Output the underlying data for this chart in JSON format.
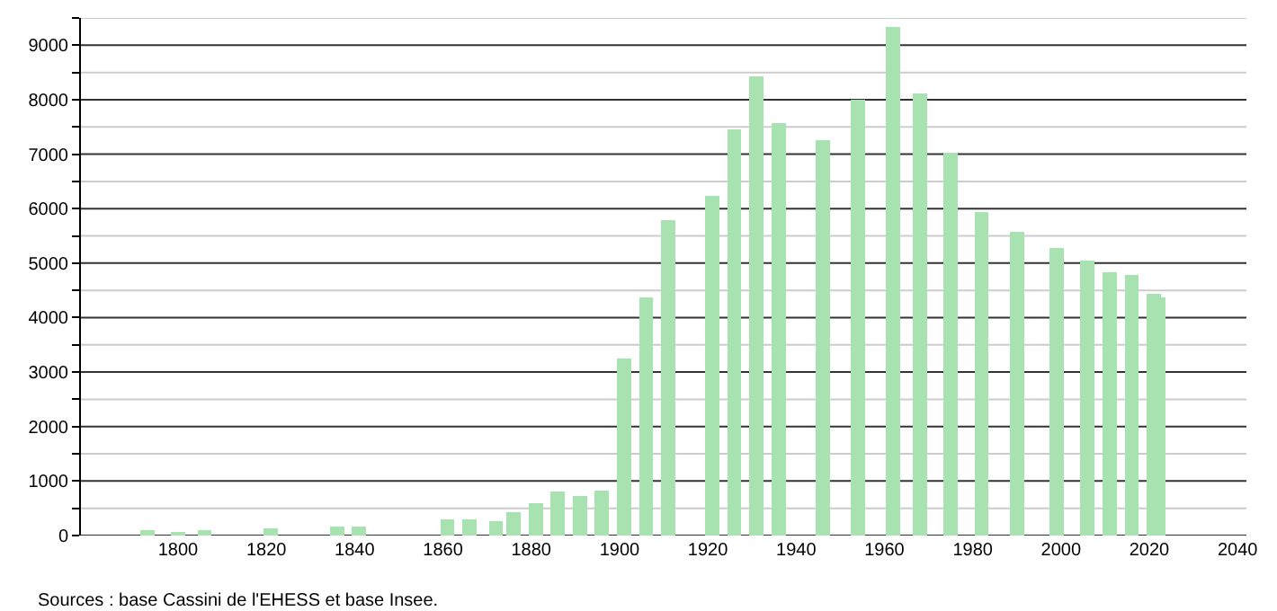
{
  "chart_data": {
    "type": "bar",
    "x": [
      1793,
      1800,
      1806,
      1821,
      1836,
      1841,
      1861,
      1866,
      1872,
      1876,
      1881,
      1886,
      1891,
      1896,
      1901,
      1906,
      1911,
      1921,
      1926,
      1931,
      1936,
      1946,
      1954,
      1962,
      1968,
      1975,
      1982,
      1990,
      1999,
      2006,
      2011,
      2016,
      2021,
      2022
    ],
    "values": [
      100,
      60,
      100,
      140,
      160,
      160,
      300,
      300,
      270,
      430,
      600,
      810,
      730,
      820,
      3250,
      4370,
      5790,
      6230,
      7460,
      8420,
      7570,
      7250,
      8000,
      9340,
      8120,
      7020,
      5930,
      5570,
      5280,
      5050,
      4830,
      4790,
      4430,
      4370
    ],
    "color": "#a8e2b0",
    "xlim": [
      1778,
      2042
    ],
    "xticks": [
      1800,
      1820,
      1840,
      1860,
      1880,
      1900,
      1920,
      1940,
      1960,
      1980,
      2000,
      2020,
      2040
    ],
    "ylim": [
      0,
      9500
    ],
    "yticks": [
      0,
      {
        "value": 500,
        "label": null
      },
      1000,
      {
        "value": 1500,
        "label": null
      },
      2000,
      {
        "value": 2500,
        "label": null
      },
      3000,
      {
        "value": 3500,
        "label": null
      },
      4000,
      {
        "value": 4500,
        "label": null
      },
      5000,
      {
        "value": 5500,
        "label": null
      },
      6000,
      {
        "value": 6500,
        "label": null
      },
      7000,
      {
        "value": 7500,
        "label": null
      },
      8000,
      {
        "value": 8500,
        "label": null
      },
      9000,
      {
        "value": 9500,
        "label": null
      }
    ],
    "grid": "y",
    "annotations": [
      "Sources : base Cassini de l'EHESS et base Insee."
    ]
  }
}
